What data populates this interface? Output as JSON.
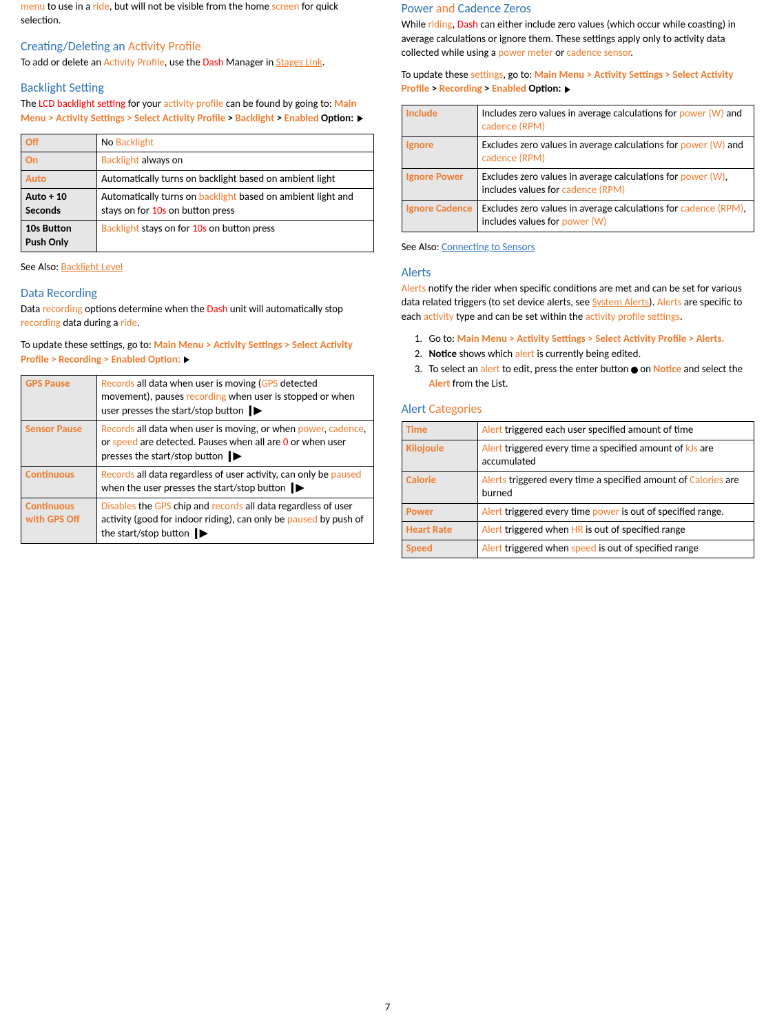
{
  "pageNumber": "7",
  "left": {
    "introFrag": {
      "pre": " to use in a ",
      "mid": ", but will not be visible from the home ",
      "post": " for quick selection."
    },
    "introTerms": {
      "menu": "menu",
      "ride": "ride",
      "screen": "screen"
    },
    "h_create": {
      "t1": "Creating/Deleting an ",
      "t2": "Activity Profile"
    },
    "p_create": {
      "t1": "To add or delete an ",
      "ap": "Activity Profile",
      "t2": ", use the ",
      "dash": "Dash",
      "t3": " Manager in ",
      "link": "Stages Link",
      "t4": "."
    },
    "h_backlight": "Backlight Setting",
    "p_backlight": {
      "t1": "The ",
      "lcd": "LCD backlight setting",
      "t2": " for your ",
      "ap": "activity profile",
      "t3": " can be found by going to: ",
      "path1": "Main Menu > Activity Settings > Select ",
      "path2": "Activity Profile",
      "path3": " > ",
      "path4": "Backlight",
      "path5": " > ",
      "path6": "Enabled",
      "path7": " Option: "
    },
    "tbl_backlight": [
      {
        "k": "Off",
        "kClass": "label-o",
        "parts": [
          {
            "t": "No ",
            "c": ""
          },
          {
            "t": "Backlight",
            "c": "orange"
          }
        ]
      },
      {
        "k": "On",
        "kClass": "label-o",
        "parts": [
          {
            "t": "Backlight",
            "c": "orange"
          },
          {
            "t": " always on",
            "c": ""
          }
        ]
      },
      {
        "k": "Auto",
        "kClass": "label-o",
        "parts": [
          {
            "t": "Automatically turns on backlight based on ambient light",
            "c": ""
          }
        ]
      },
      {
        "k": "Auto + 10 Seconds",
        "kClass": "label",
        "parts": [
          {
            "t": "Automatically turns on ",
            "c": ""
          },
          {
            "t": "backlight",
            "c": "orange"
          },
          {
            "t": " based on ambient light and stays on for ",
            "c": ""
          },
          {
            "t": "10s",
            "c": "red"
          },
          {
            "t": " on button press",
            "c": ""
          }
        ]
      },
      {
        "k": "10s Button Push Only",
        "kClass": "label",
        "parts": [
          {
            "t": "Backlight",
            "c": "orange"
          },
          {
            "t": " stays on for ",
            "c": ""
          },
          {
            "t": "10s",
            "c": "red"
          },
          {
            "t": " on button press",
            "c": ""
          }
        ]
      }
    ],
    "seeAlso1": {
      "pre": "See Also: ",
      "link": "Backlight Level"
    },
    "h_data": "Data Recording",
    "p_data1": {
      "t1": "Data ",
      "rec": "recording",
      "t2": " options determine when the ",
      "dash": "Dash",
      "t3": " unit will automatically stop ",
      "rec2": "recording",
      "t4": " data during a ",
      "ride": "ride",
      "t5": "."
    },
    "p_data2": {
      "t1": "To update these settings, go to: ",
      "path": "Main Menu > Activity Settings > Select Activity Profile > Recording > Enabled Option: "
    },
    "tbl_data": [
      {
        "k": "GPS Pause",
        "parts": [
          {
            "t": "Records",
            "c": "orange"
          },
          {
            "t": " all data when user is moving (",
            "c": ""
          },
          {
            "t": "GPS",
            "c": "orange"
          },
          {
            "t": " detected movement), pauses ",
            "c": ""
          },
          {
            "t": "recording",
            "c": "orange"
          },
          {
            "t": " when user is stopped or when user presses the start/stop button ",
            "c": ""
          },
          {
            "icon": "startstop"
          }
        ]
      },
      {
        "k": "Sensor Pause",
        "parts": [
          {
            "t": "Records",
            "c": "orange"
          },
          {
            "t": " all data when user is moving, or when ",
            "c": ""
          },
          {
            "t": "power",
            "c": "orange"
          },
          {
            "t": ", ",
            "c": ""
          },
          {
            "t": "cadence",
            "c": "orange"
          },
          {
            "t": ", or ",
            "c": ""
          },
          {
            "t": "speed",
            "c": "orange"
          },
          {
            "t": " are detected. Pauses when all are ",
            "c": ""
          },
          {
            "t": "0",
            "c": "red"
          },
          {
            "t": " or when user presses the start/stop button ",
            "c": ""
          },
          {
            "icon": "startstop"
          }
        ]
      },
      {
        "k": "Continuous",
        "parts": [
          {
            "t": "Records",
            "c": "orange"
          },
          {
            "t": " all data regardless of user activity, can only be ",
            "c": ""
          },
          {
            "t": "paused",
            "c": "orange"
          },
          {
            "t": " when the user presses the start/stop button ",
            "c": ""
          },
          {
            "icon": "startstop"
          }
        ]
      },
      {
        "k": "Continuous with GPS Off",
        "parts": [
          {
            "t": "Disables",
            "c": "orange"
          },
          {
            "t": " the ",
            "c": ""
          },
          {
            "t": "GPS",
            "c": "orange"
          },
          {
            "t": " chip and ",
            "c": ""
          },
          {
            "t": "records",
            "c": "orange"
          },
          {
            "t": " all data regardless of user activity (good for indoor riding), can only be ",
            "c": ""
          },
          {
            "t": "paused",
            "c": "orange"
          },
          {
            "t": " by push of the start/stop button ",
            "c": ""
          },
          {
            "icon": "startstop"
          }
        ]
      }
    ]
  },
  "right": {
    "h_zeros": {
      "t1": "Power",
      "t2": " and ",
      "t3": "Cadence",
      "t4": " Zeros"
    },
    "p_zeros1": {
      "t1": "While ",
      "riding": "riding",
      "t2": ", ",
      "dash": "Dash",
      "t3": " can either include zero values (which occur while coasting) in average calculations or ignore them. These settings apply only to activity data collected while using a ",
      "pm": "power meter",
      "t4": " or ",
      "cs": "cadence sensor",
      "t5": "."
    },
    "p_zeros2": {
      "t1": "To update these ",
      "set": "settings",
      "t2": ", go to: ",
      "p1": "Main Menu > Activity Settings > Select Activity Profile",
      "p2": " > ",
      "p3": "Recording",
      "p4": " > ",
      "p5": "Enabled",
      "p6": " Option: "
    },
    "tbl_zeros": [
      {
        "k": "Include",
        "parts": [
          {
            "t": "Includes zero values in average calculations for ",
            "c": ""
          },
          {
            "t": "power (W)",
            "c": "orange"
          },
          {
            "t": " and ",
            "c": ""
          },
          {
            "t": "cadence (RPM)",
            "c": "orange"
          }
        ]
      },
      {
        "k": "Ignore",
        "parts": [
          {
            "t": "Excludes zero values in average calculations for ",
            "c": ""
          },
          {
            "t": "power (W)",
            "c": "orange"
          },
          {
            "t": " and ",
            "c": ""
          },
          {
            "t": "cadence (RPM)",
            "c": "orange"
          }
        ]
      },
      {
        "k": "Ignore Power",
        "parts": [
          {
            "t": "Excludes zero values in average calculations for ",
            "c": ""
          },
          {
            "t": "power (W)",
            "c": "orange"
          },
          {
            "t": ", includes values for ",
            "c": ""
          },
          {
            "t": "cadence (RPM)",
            "c": "orange"
          }
        ]
      },
      {
        "k": "Ignore Cadence",
        "parts": [
          {
            "t": "Excludes zero values in average calculations for ",
            "c": ""
          },
          {
            "t": "cadence (RPM)",
            "c": "orange"
          },
          {
            "t": ", includes values for ",
            "c": ""
          },
          {
            "t": "power (W)",
            "c": "orange"
          }
        ]
      }
    ],
    "seeAlso2": {
      "pre": "See Also: ",
      "link": "Connecting to Sensors"
    },
    "h_alerts": "Alerts",
    "p_alerts": {
      "a1": "Alerts",
      "t1": " notify the rider when specific conditions are met and can be set for various data related triggers (to set device alerts, see ",
      "sa": "System Alerts",
      "t2": "). ",
      "a2": "Alerts",
      "t3": " are specific to each ",
      "act": "activity",
      "t4": " type and can be set within the ",
      "aps": "activity profile settings",
      "t5": "."
    },
    "ol": {
      "li1": {
        "t1": "Go to: ",
        "path": "Main Menu > Activity Settings > Select Activity Profile > Alerts."
      },
      "li2": {
        "n": "Notice",
        "t1": " shows which ",
        "a": "alert",
        "t2": " is currently being edited."
      },
      "li3": {
        "t1": "To select an ",
        "a": "alert",
        "t2": " to edit, press the enter button ",
        "t3": " on ",
        "n": "Notice",
        "t4": " and select the ",
        "al": "Alert",
        "t5": " from the List."
      }
    },
    "h_alertcat": {
      "t1": "Alert",
      "t2": " Categories"
    },
    "tbl_alertcat": [
      {
        "k": "Time",
        "parts": [
          {
            "t": "Alert",
            "c": "orange"
          },
          {
            "t": " triggered each user specified amount of time",
            "c": ""
          }
        ]
      },
      {
        "k": "Kilojoule",
        "parts": [
          {
            "t": "Alert",
            "c": "orange"
          },
          {
            "t": " triggered every time a specified amount of ",
            "c": ""
          },
          {
            "t": "kJs",
            "c": "orange"
          },
          {
            "t": " are accumulated",
            "c": ""
          }
        ]
      },
      {
        "k": "Calorie",
        "parts": [
          {
            "t": "Alerts",
            "c": "orange"
          },
          {
            "t": " triggered every time a specified amount of ",
            "c": ""
          },
          {
            "t": "Calories",
            "c": "orange"
          },
          {
            "t": " are burned",
            "c": ""
          }
        ]
      },
      {
        "k": "Power",
        "parts": [
          {
            "t": "Alert",
            "c": "orange"
          },
          {
            "t": " triggered every time ",
            "c": ""
          },
          {
            "t": "power",
            "c": "orange"
          },
          {
            "t": " is out of specified range.",
            "c": ""
          }
        ]
      },
      {
        "k": "Heart Rate",
        "parts": [
          {
            "t": "Alert",
            "c": "orange"
          },
          {
            "t": " triggered when ",
            "c": ""
          },
          {
            "t": "HR",
            "c": "orange"
          },
          {
            "t": " is out of specified range",
            "c": ""
          }
        ]
      },
      {
        "k": "Speed",
        "parts": [
          {
            "t": "Alert",
            "c": "orange"
          },
          {
            "t": " triggered when ",
            "c": ""
          },
          {
            "t": "speed",
            "c": "orange"
          },
          {
            "t": " is out of specified range",
            "c": ""
          }
        ]
      }
    ]
  }
}
